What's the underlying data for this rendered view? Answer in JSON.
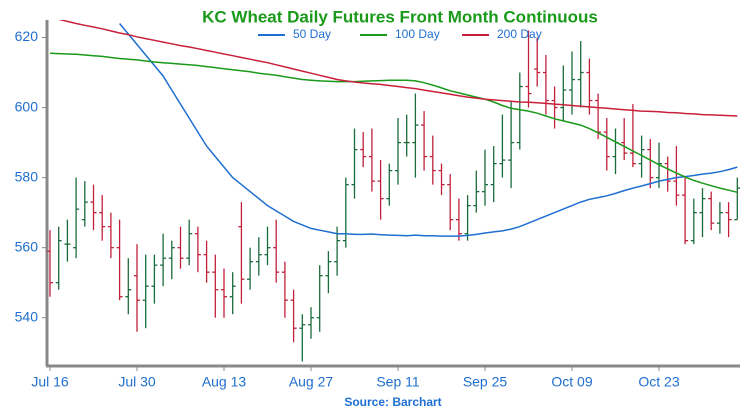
{
  "chart_data": {
    "type": "ohlc",
    "title": "KC Wheat Daily Futures Front Month Continuous",
    "source": "Source: Barchart",
    "categories": [
      "Jul 16",
      null,
      null,
      null,
      null,
      null,
      null,
      null,
      null,
      null,
      "Jul 30",
      null,
      null,
      null,
      null,
      null,
      null,
      null,
      null,
      null,
      "Aug 13",
      null,
      null,
      null,
      null,
      null,
      null,
      null,
      null,
      null,
      "Aug 27",
      null,
      null,
      null,
      null,
      null,
      null,
      null,
      null,
      null,
      "Sep 11",
      null,
      null,
      null,
      null,
      null,
      null,
      null,
      null,
      null,
      "Sep 25",
      null,
      null,
      null,
      null,
      null,
      null,
      null,
      null,
      null,
      "Oct 09",
      null,
      null,
      null,
      null,
      null,
      null,
      null,
      null,
      null,
      "Oct 23",
      null,
      null,
      null,
      null,
      null,
      null,
      null,
      null,
      null
    ],
    "open": [
      559,
      550,
      561,
      560,
      568,
      573,
      570,
      566,
      560,
      546,
      552,
      545,
      549,
      555,
      557,
      560,
      557,
      564,
      558,
      553,
      548,
      546,
      566,
      551,
      556,
      558,
      560,
      553,
      545,
      537,
      538,
      540,
      552,
      556,
      562,
      578,
      588,
      586,
      579,
      574,
      582,
      590,
      590,
      595,
      586,
      582,
      578,
      568,
      564,
      572,
      576,
      578,
      584,
      585,
      590,
      606,
      611,
      610,
      602,
      600,
      605,
      608,
      610,
      602,
      593,
      586,
      590,
      587,
      584,
      588,
      580,
      584,
      579,
      575,
      562,
      570,
      574,
      567,
      570,
      568
    ],
    "high": [
      565,
      566,
      568,
      580,
      579,
      578,
      575,
      570,
      568,
      557,
      561,
      558,
      558,
      564,
      562,
      566,
      568,
      566,
      562,
      558,
      554,
      553,
      573,
      560,
      563,
      566,
      568,
      556,
      548,
      541,
      543,
      555,
      559,
      566,
      580,
      594,
      593,
      594,
      585,
      584,
      597,
      598,
      604,
      599,
      592,
      584,
      581,
      574,
      575,
      582,
      588,
      589,
      598,
      602,
      610,
      622,
      620,
      615,
      606,
      612,
      616,
      619,
      614,
      604,
      597,
      594,
      597,
      601,
      592,
      591,
      590,
      586,
      589,
      580,
      574,
      577,
      576,
      573,
      573,
      580
    ],
    "low": [
      546,
      548,
      556,
      557,
      566,
      565,
      562,
      557,
      545,
      541,
      536,
      537,
      544,
      549,
      551,
      554,
      555,
      553,
      550,
      540,
      540,
      541,
      544,
      548,
      552,
      555,
      550,
      540,
      533,
      527.5,
      534,
      536,
      547,
      552,
      560,
      574,
      583,
      576,
      568,
      572,
      578,
      586,
      580,
      582,
      578,
      575,
      565,
      562,
      562,
      570,
      572,
      573,
      580,
      577,
      588,
      600,
      606,
      598,
      594,
      596,
      598,
      600,
      598,
      591,
      582,
      581,
      585,
      583,
      580,
      577,
      577,
      576,
      572,
      561,
      561,
      563,
      565,
      564,
      563,
      568
    ],
    "close": [
      550,
      562,
      561,
      571,
      573,
      570,
      566,
      560,
      546,
      548,
      545,
      549,
      555,
      557,
      560,
      557,
      564,
      558,
      553,
      548,
      546,
      549,
      551,
      556,
      558,
      560,
      553,
      545,
      537,
      538,
      540,
      552,
      556,
      562,
      578,
      588,
      586,
      579,
      574,
      582,
      590,
      590,
      595,
      586,
      582,
      578,
      568,
      564,
      572,
      576,
      578,
      584,
      585,
      590,
      606,
      604,
      610,
      602,
      600,
      605,
      608,
      610,
      602,
      593,
      586,
      590,
      587,
      584,
      588,
      580,
      584,
      579,
      575,
      562,
      570,
      574,
      567,
      570,
      568,
      577
    ],
    "up_color": "#1a6b3c",
    "down_color": "#c0203a",
    "series": [
      {
        "name": "50 Day",
        "color": "#1f6fd0",
        "values": [
          null,
          null,
          null,
          null,
          null,
          null,
          null,
          null,
          624,
          621,
          618,
          615,
          612,
          609,
          605,
          601,
          597,
          593,
          589,
          586,
          583,
          580,
          578,
          576,
          574,
          572,
          570.5,
          569,
          567.5,
          566.5,
          565.5,
          565,
          564.5,
          564,
          564,
          563.8,
          563.8,
          563.9,
          563.7,
          563.6,
          563.5,
          563.4,
          563.6,
          563.4,
          563.4,
          563.3,
          563.3,
          563.3,
          563.5,
          563.8,
          564.2,
          564.5,
          564.8,
          565.3,
          566,
          567,
          568,
          569,
          570,
          571,
          572,
          573,
          573.8,
          574.3,
          574.8,
          575.5,
          576.3,
          577,
          577.6,
          578.3,
          579,
          579.5,
          580,
          580.3,
          580.6,
          581,
          581.3,
          581.7,
          582.3,
          583
        ]
      },
      {
        "name": "100 Day",
        "color": "#1a9a1a",
        "values": [
          615.5,
          615.4,
          615.3,
          615.2,
          615,
          614.8,
          614.6,
          614.3,
          614,
          613.8,
          613.6,
          613.3,
          613,
          612.8,
          612.6,
          612.4,
          612.2,
          612,
          611.7,
          611.4,
          611.1,
          610.8,
          610.5,
          610.2,
          609.8,
          609.5,
          609.2,
          608.8,
          608.4,
          608,
          607.8,
          607.6,
          607.5,
          607.4,
          607.4,
          607.4,
          607.5,
          607.6,
          607.7,
          607.8,
          607.8,
          607.8,
          607.6,
          607.1,
          606.4,
          605.6,
          604.8,
          604.2,
          603.6,
          603,
          602.4,
          601.6,
          600.6,
          599.8,
          599.4,
          599,
          598.4,
          597.6,
          596.8,
          596.2,
          595.6,
          595,
          594,
          592.8,
          591.5,
          590.2,
          588.9,
          587.6,
          586.3,
          585,
          583.7,
          582.5,
          581.3,
          580.2,
          579.2,
          578.4,
          577.7,
          577,
          576.4,
          575.8
        ]
      },
      {
        "name": "200 Day",
        "color": "#c8203a",
        "values": [
          625.8,
          625.2,
          624.6,
          624,
          623.5,
          623,
          622.5,
          621.9,
          621.3,
          620.8,
          620.2,
          619.7,
          619.2,
          618.7,
          618.2,
          617.7,
          617.3,
          616.8,
          616.3,
          615.8,
          615.3,
          614.8,
          614.3,
          613.8,
          613.3,
          612.8,
          612.2,
          611.6,
          611,
          610.4,
          609.8,
          609.2,
          608.6,
          608,
          607.6,
          607.3,
          607,
          606.8,
          606.6,
          606.3,
          606,
          605.7,
          605.4,
          605,
          604.6,
          604.2,
          603.8,
          603.4,
          603,
          602.7,
          602.4,
          602.2,
          602,
          601.8,
          601.6,
          601.5,
          601.4,
          601.2,
          601,
          600.8,
          600.6,
          600.4,
          600.2,
          600,
          599.8,
          599.6,
          599.4,
          599.2,
          599,
          598.9,
          598.8,
          598.6,
          598.5,
          598.3,
          598.2,
          598,
          597.9,
          597.8,
          597.7,
          597.6
        ]
      }
    ],
    "ylim": [
      526.5,
      625
    ],
    "yticks": [
      540,
      560,
      580,
      600,
      620
    ],
    "legend": "top"
  }
}
